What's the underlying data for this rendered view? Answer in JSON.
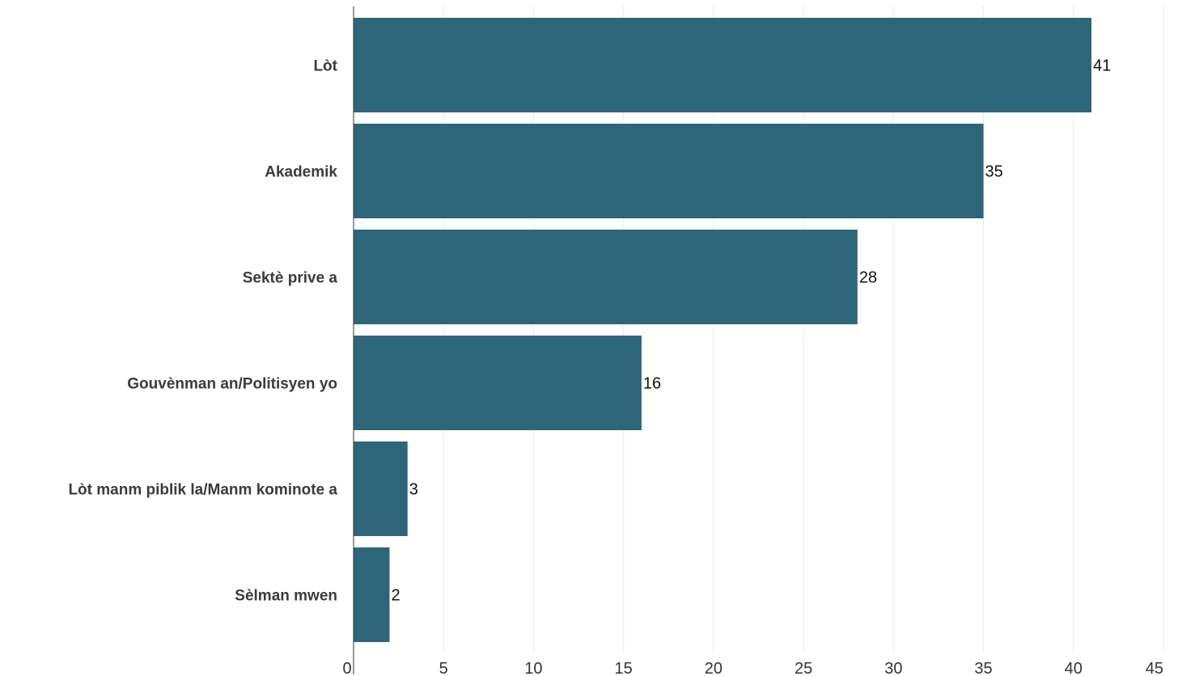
{
  "chart_data": {
    "type": "bar",
    "orientation": "horizontal",
    "categories": [
      "Lòt",
      "Akademik",
      "Sektè prive a",
      "Gouvènman an/Politisyen yo",
      "Lòt manm piblik la/Manm kominote a",
      "Sèlman mwen"
    ],
    "values": [
      41,
      35,
      28,
      16,
      3,
      2
    ],
    "value_labels": [
      "41",
      "35",
      "28",
      "16",
      "3",
      "2"
    ],
    "xlim": [
      0,
      45
    ],
    "xticks": [
      0,
      5,
      10,
      15,
      20,
      25,
      30,
      35,
      40,
      45
    ],
    "xtick_labels": [
      "0",
      "5",
      "10",
      "15",
      "20",
      "25",
      "30",
      "35",
      "40",
      "45"
    ],
    "grid": "vertical",
    "legend": "none",
    "bar_color": "#2d6678"
  }
}
